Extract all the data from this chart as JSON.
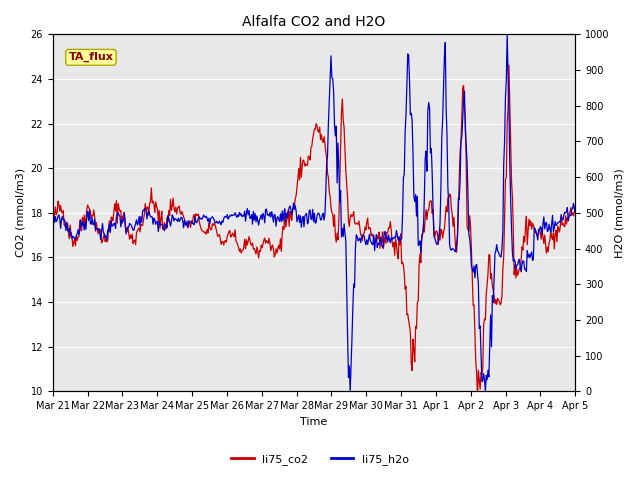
{
  "title": "Alfalfa CO2 and H2O",
  "xlabel": "Time",
  "ylabel_left": "CO2 (mmol/m3)",
  "ylabel_right": "H2O (mmol/m3)",
  "ylim_left": [
    10,
    26
  ],
  "ylim_right": [
    0,
    1000
  ],
  "yticks_left": [
    10,
    12,
    14,
    16,
    18,
    20,
    22,
    24,
    26
  ],
  "yticks_right": [
    0,
    100,
    200,
    300,
    400,
    500,
    600,
    700,
    800,
    900,
    1000
  ],
  "bg_color": "#e8e8e8",
  "fig_color": "#ffffff",
  "grid_color": "#ffffff",
  "co2_color": "#cc0000",
  "h2o_color": "#0000cc",
  "annotation_text": "TA_flux",
  "annotation_color": "#8b0000",
  "annotation_bg": "#ffff99",
  "legend_co2": "li75_co2",
  "legend_h2o": "li75_h2o",
  "xtick_labels": [
    "Mar 21",
    "Mar 22",
    "Mar 23",
    "Mar 24",
    "Mar 25",
    "Mar 26",
    "Mar 27",
    "Mar 28",
    "Mar 29",
    "Mar 30",
    "Mar 31",
    "Apr 1",
    "Apr 2",
    "Apr 3",
    "Apr 4",
    "Apr 5"
  ],
  "figsize": [
    6.4,
    4.8
  ],
  "dpi": 100,
  "title_fontsize": 10,
  "label_fontsize": 8,
  "tick_fontsize": 7,
  "annotation_fontsize": 8,
  "legend_fontsize": 8,
  "linewidth": 0.9
}
